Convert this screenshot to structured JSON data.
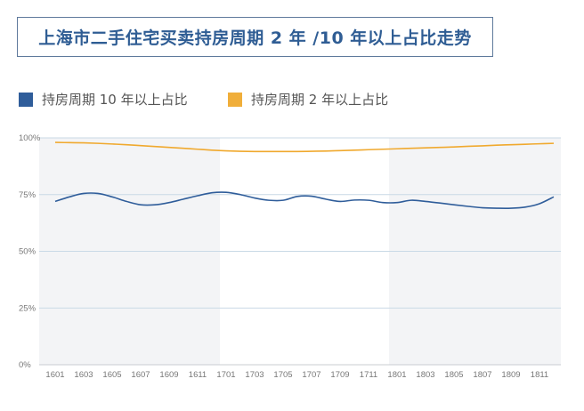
{
  "chart_data": {
    "type": "line",
    "title": "上海市二手住宅买卖持房周期 2 年 /10 年以上占比走势",
    "x": [
      "1601",
      "1602",
      "1603",
      "1604",
      "1605",
      "1606",
      "1607",
      "1608",
      "1609",
      "1610",
      "1611",
      "1612",
      "1701",
      "1702",
      "1703",
      "1704",
      "1705",
      "1706",
      "1707",
      "1708",
      "1709",
      "1710",
      "1711",
      "1712",
      "1801",
      "1802",
      "1803",
      "1804",
      "1805",
      "1806",
      "1807",
      "1808",
      "1809",
      "1810",
      "1811",
      "1812"
    ],
    "x_tick_labels": [
      "1601",
      "1603",
      "1605",
      "1607",
      "1609",
      "1611",
      "1701",
      "1703",
      "1705",
      "1707",
      "1709",
      "1711",
      "1801",
      "1803",
      "1805",
      "1807",
      "1809",
      "1811"
    ],
    "y_tick_labels": [
      "0%",
      "25%",
      "50%",
      "75%",
      "100%"
    ],
    "ylim": [
      0,
      100
    ],
    "grid": true,
    "legend_position": "top-left",
    "series": [
      {
        "name": "持房周期 10 年以上占比",
        "color": "#2f5d9a",
        "values": [
          72,
          74,
          75.5,
          75.5,
          74,
          72,
          70.5,
          70.5,
          71.5,
          73,
          74.5,
          75.8,
          76,
          75,
          73.5,
          72.5,
          72.5,
          74.2,
          74.3,
          73,
          72,
          72.6,
          72.5,
          71.5,
          71.5,
          72.5,
          72,
          71.3,
          70.5,
          69.8,
          69.2,
          69,
          69,
          69.5,
          71,
          74
        ]
      },
      {
        "name": "持房周期 2 年以上占比",
        "color": "#f0a92e",
        "values": [
          98,
          97.9,
          97.8,
          97.6,
          97.3,
          97,
          96.6,
          96.2,
          95.8,
          95.4,
          95,
          94.6,
          94.3,
          94.1,
          94,
          94,
          94,
          94,
          94.1,
          94.2,
          94.4,
          94.6,
          94.8,
          95,
          95.2,
          95.4,
          95.6,
          95.8,
          96,
          96.3,
          96.5,
          96.8,
          97,
          97.2,
          97.4,
          97.6
        ]
      }
    ]
  }
}
